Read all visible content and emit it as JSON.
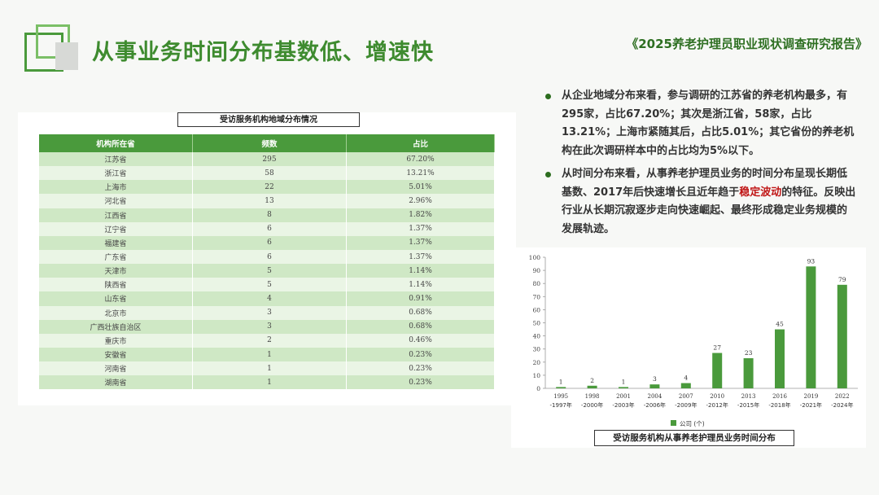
{
  "header": {
    "title": "从事业务时间分布基数低、增速快",
    "report": "《2025养老护理员职业现状调查研究报告》"
  },
  "region_table": {
    "caption": "受访服务机构地域分布情况",
    "columns": [
      "机构所在省",
      "频数",
      "占比"
    ],
    "rows": [
      [
        "江苏省",
        "295",
        "67.20%"
      ],
      [
        "浙江省",
        "58",
        "13.21%"
      ],
      [
        "上海市",
        "22",
        "5.01%"
      ],
      [
        "河北省",
        "13",
        "2.96%"
      ],
      [
        "江西省",
        "8",
        "1.82%"
      ],
      [
        "辽宁省",
        "6",
        "1.37%"
      ],
      [
        "福建省",
        "6",
        "1.37%"
      ],
      [
        "广东省",
        "6",
        "1.37%"
      ],
      [
        "天津市",
        "5",
        "1.14%"
      ],
      [
        "陕西省",
        "5",
        "1.14%"
      ],
      [
        "山东省",
        "4",
        "0.91%"
      ],
      [
        "北京市",
        "3",
        "0.68%"
      ],
      [
        "广西壮族自治区",
        "3",
        "0.68%"
      ],
      [
        "重庆市",
        "2",
        "0.46%"
      ],
      [
        "安徽省",
        "1",
        "0.23%"
      ],
      [
        "河南省",
        "1",
        "0.23%"
      ],
      [
        "湖南省",
        "1",
        "0.23%"
      ]
    ]
  },
  "bullets": {
    "b1": "从企业地域分布来看，参与调研的江苏省的养老机构最多，有295家，占比67.20%；其次是浙江省，58家，占比13.21%；上海市紧随其后，占比5.01%；其它省份的养老机构在此次调研样本中的占比均为5%以下。",
    "b2_before": "从时间分布来看，从事养老护理员业务的时间分布呈现长期低基数、2017年后快速增长且近年趋于",
    "b2_highlight": "稳定波动",
    "b2_after": "的特征。反映出行业从长期沉寂逐步走向快速崛起、最终形成稳定业务规模的发展轨迹。"
  },
  "chart_caption": "受访服务机构从事养老护理员业务时间分布",
  "colors": {
    "accent": "#4a9a3c",
    "highlight": "#c01616",
    "bar": "#4a9a3c"
  },
  "chart_data": {
    "type": "bar",
    "categories": [
      [
        "1995",
        "-1997年"
      ],
      [
        "1998",
        "-2000年"
      ],
      [
        "2001",
        "-2003年"
      ],
      [
        "2004",
        "-2006年"
      ],
      [
        "2007",
        "-2009年"
      ],
      [
        "2010",
        "-2012年"
      ],
      [
        "2013",
        "-2015年"
      ],
      [
        "2016",
        "-2018年"
      ],
      [
        "2019",
        "-2021年"
      ],
      [
        "2022",
        "-2024年"
      ]
    ],
    "series": [
      {
        "name": "公司 (个)",
        "values": [
          1,
          2,
          1,
          3,
          4,
          27,
          23,
          45,
          93,
          79
        ]
      }
    ],
    "ylim": [
      0,
      100
    ],
    "yticks": [
      0,
      10,
      20,
      30,
      40,
      50,
      60,
      70,
      80,
      90,
      100
    ],
    "data_labels": true,
    "legend": "bottom-center",
    "grid": false
  }
}
